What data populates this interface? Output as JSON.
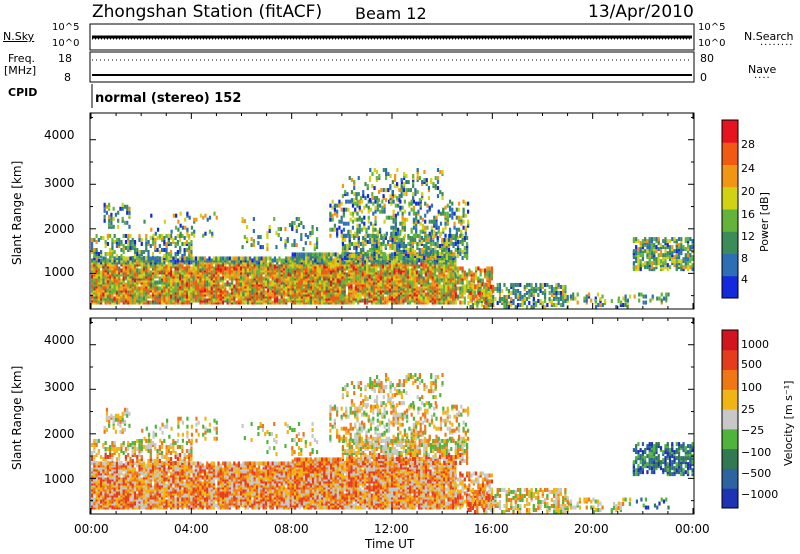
{
  "header": {
    "station": "Zhongshan Station (fitACF)",
    "beam": "Beam 12",
    "date": "13/Apr/2010"
  },
  "strip_labels": {
    "nsky": "N.Sky",
    "nsky_ticks": [
      "10^5",
      "10^0"
    ],
    "nsearch": "N.Search",
    "nsearch_ticks": [
      "10^5",
      "10^0"
    ],
    "freq": "Freq.",
    "freq_unit": "[MHz]",
    "freq_ticks": [
      "18",
      "8"
    ],
    "nave": "Nave",
    "nave_ticks": [
      "80",
      "0"
    ],
    "cpid": "CPID",
    "cpid_value": "normal (stereo) 152"
  },
  "colors": {
    "power_scale": [
      "#1428dc",
      "#2d6eb4",
      "#3c8c5a",
      "#64b43c",
      "#d2d214",
      "#f09614",
      "#f05a14",
      "#e6141e"
    ],
    "velocity_scale": [
      "#1e32b4",
      "#2d64a0",
      "#327850",
      "#50b43c",
      "#c8c8c8",
      "#f0b414",
      "#f07814",
      "#e63c1e",
      "#d2141e"
    ]
  },
  "chart_data": [
    {
      "type": "heatmap",
      "parameter": "power",
      "ylabel": "Slant Range [km]",
      "yticks": [
        "4000",
        "3000",
        "2000",
        "1000"
      ],
      "ylim": [
        200,
        4600
      ],
      "colorbar_label": "Power [dB]",
      "colorbar_ticks": [
        "28",
        "24",
        "20",
        "16",
        "12",
        "8",
        "4"
      ],
      "clim": [
        0,
        30
      ]
    },
    {
      "type": "heatmap",
      "parameter": "velocity",
      "ylabel": "Slant Range [km]",
      "yticks": [
        "4000",
        "3000",
        "2000",
        "1000"
      ],
      "ylim": [
        200,
        4600
      ],
      "colorbar_label": "Velocity [m s⁻¹]",
      "colorbar_ticks": [
        "1000",
        "500",
        "100",
        "25",
        "−25",
        "−100",
        "−500",
        "−1000"
      ]
    }
  ],
  "x_axis": {
    "ticks": [
      "00:00",
      "04:00",
      "08:00",
      "12:00",
      "16:00",
      "20:00",
      "00:00"
    ],
    "label": "Time UT",
    "range_hours": [
      0,
      24
    ]
  }
}
